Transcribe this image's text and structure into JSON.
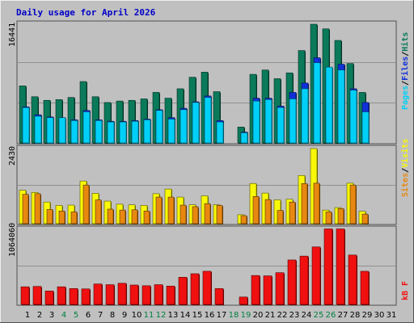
{
  "title": "Daily usage for April 2026",
  "colors": {
    "background": "#c0c0c0",
    "frame_light": "#f0f0f0",
    "frame_dark": "#505050",
    "hits": "#0a7a5a",
    "files": "#1030d8",
    "pages": "#00d0f8",
    "sites": "#e88810",
    "visits": "#f8f808",
    "kbytes": "#f01010",
    "title_text": "#0000c8",
    "weekday_text": "#000000",
    "weekend_text": "#008040",
    "gridline": "#909090"
  },
  "chart_data": [
    {
      "type": "bar",
      "panel": "hits-files-pages",
      "title": "Daily usage for April 2026",
      "ymax_label": "16441",
      "ylim": [
        0,
        16441
      ],
      "categories": [
        "1",
        "2",
        "3",
        "4",
        "5",
        "6",
        "7",
        "8",
        "9",
        "10",
        "11",
        "12",
        "13",
        "14",
        "15",
        "16",
        "17",
        "18",
        "19",
        "20",
        "21",
        "22",
        "23",
        "24",
        "25",
        "26",
        "27",
        "28",
        "29",
        "30",
        "31"
      ],
      "series": [
        {
          "name": "Hits",
          "values": [
            7900,
            6400,
            5900,
            6000,
            6300,
            8500,
            6400,
            5600,
            5800,
            5900,
            6100,
            7000,
            6200,
            7500,
            9100,
            9800,
            7100,
            0,
            2200,
            9500,
            10100,
            8900,
            9700,
            12800,
            16441,
            15800,
            14200,
            11000,
            7000,
            0,
            0
          ]
        },
        {
          "name": "Files",
          "values": [
            5000,
            3900,
            3600,
            3500,
            3200,
            4500,
            3200,
            3000,
            3000,
            3100,
            3300,
            4600,
            3500,
            4800,
            5700,
            6500,
            3100,
            0,
            1500,
            6200,
            6200,
            5100,
            7000,
            8300,
            11800,
            9800,
            10900,
            7500,
            5600,
            0,
            0
          ]
        },
        {
          "name": "Pages",
          "values": [
            4900,
            3700,
            3500,
            3500,
            3100,
            4300,
            3100,
            2900,
            2900,
            3000,
            3200,
            4500,
            3300,
            4600,
            5600,
            6300,
            2900,
            0,
            1400,
            5800,
            6000,
            4900,
            6100,
            7500,
            11100,
            10500,
            10100,
            7300,
            4300,
            0,
            0
          ]
        }
      ],
      "legend": [
        "Pages",
        "Files",
        "Hits"
      ]
    },
    {
      "type": "bar",
      "panel": "sites-visits",
      "ymax_label": "2430",
      "ylim": [
        0,
        2430
      ],
      "categories": [
        "1",
        "2",
        "3",
        "4",
        "5",
        "6",
        "7",
        "8",
        "9",
        "10",
        "11",
        "12",
        "13",
        "14",
        "15",
        "16",
        "17",
        "18",
        "19",
        "20",
        "21",
        "22",
        "23",
        "24",
        "25",
        "26",
        "27",
        "28",
        "29",
        "30",
        "31"
      ],
      "series": [
        {
          "name": "Visits",
          "values": [
            1080,
            1010,
            700,
            590,
            600,
            1380,
            980,
            730,
            630,
            610,
            590,
            970,
            1120,
            860,
            610,
            900,
            610,
            0,
            290,
            1300,
            990,
            770,
            790,
            1560,
            2430,
            440,
            520,
            1310,
            400,
            0,
            0
          ]
        },
        {
          "name": "Sites",
          "values": [
            950,
            970,
            460,
            410,
            380,
            1250,
            770,
            470,
            440,
            450,
            410,
            860,
            860,
            600,
            550,
            650,
            590,
            0,
            260,
            880,
            780,
            430,
            700,
            1300,
            1310,
            380,
            490,
            1250,
            310,
            0,
            0
          ]
        }
      ],
      "legend": [
        "Sites",
        "Visits"
      ]
    },
    {
      "type": "bar",
      "panel": "kbytes",
      "ymax_label": "1064060",
      "ylim": [
        0,
        1064060
      ],
      "categories": [
        "1",
        "2",
        "3",
        "4",
        "5",
        "6",
        "7",
        "8",
        "9",
        "10",
        "11",
        "12",
        "13",
        "14",
        "15",
        "16",
        "17",
        "18",
        "19",
        "20",
        "21",
        "22",
        "23",
        "24",
        "25",
        "26",
        "27",
        "28",
        "29",
        "30",
        "31"
      ],
      "series": [
        {
          "name": "KBytes",
          "values": [
            250000,
            255000,
            190000,
            250000,
            225000,
            220000,
            290000,
            280000,
            300000,
            275000,
            265000,
            280000,
            260000,
            385000,
            435000,
            470000,
            225000,
            0,
            105000,
            410000,
            405000,
            450000,
            630000,
            685000,
            815000,
            1070000,
            1070000,
            700000,
            470000,
            0,
            0
          ]
        }
      ],
      "legend": [
        "kB F"
      ]
    }
  ],
  "xaxis": {
    "days": [
      "1",
      "2",
      "3",
      "4",
      "5",
      "6",
      "7",
      "8",
      "9",
      "10",
      "11",
      "12",
      "13",
      "14",
      "15",
      "16",
      "17",
      "18",
      "19",
      "20",
      "21",
      "22",
      "23",
      "24",
      "25",
      "26",
      "27",
      "28",
      "29",
      "30",
      "31"
    ],
    "weekend_days": [
      "4",
      "5",
      "11",
      "12",
      "18",
      "19",
      "25",
      "26"
    ]
  },
  "right_labels": {
    "panel1": [
      "Pages",
      "/",
      "Files",
      "/",
      "Hits"
    ],
    "panel2": [
      "Sites",
      "/",
      "Visits"
    ],
    "panel3": [
      "kB F"
    ]
  }
}
